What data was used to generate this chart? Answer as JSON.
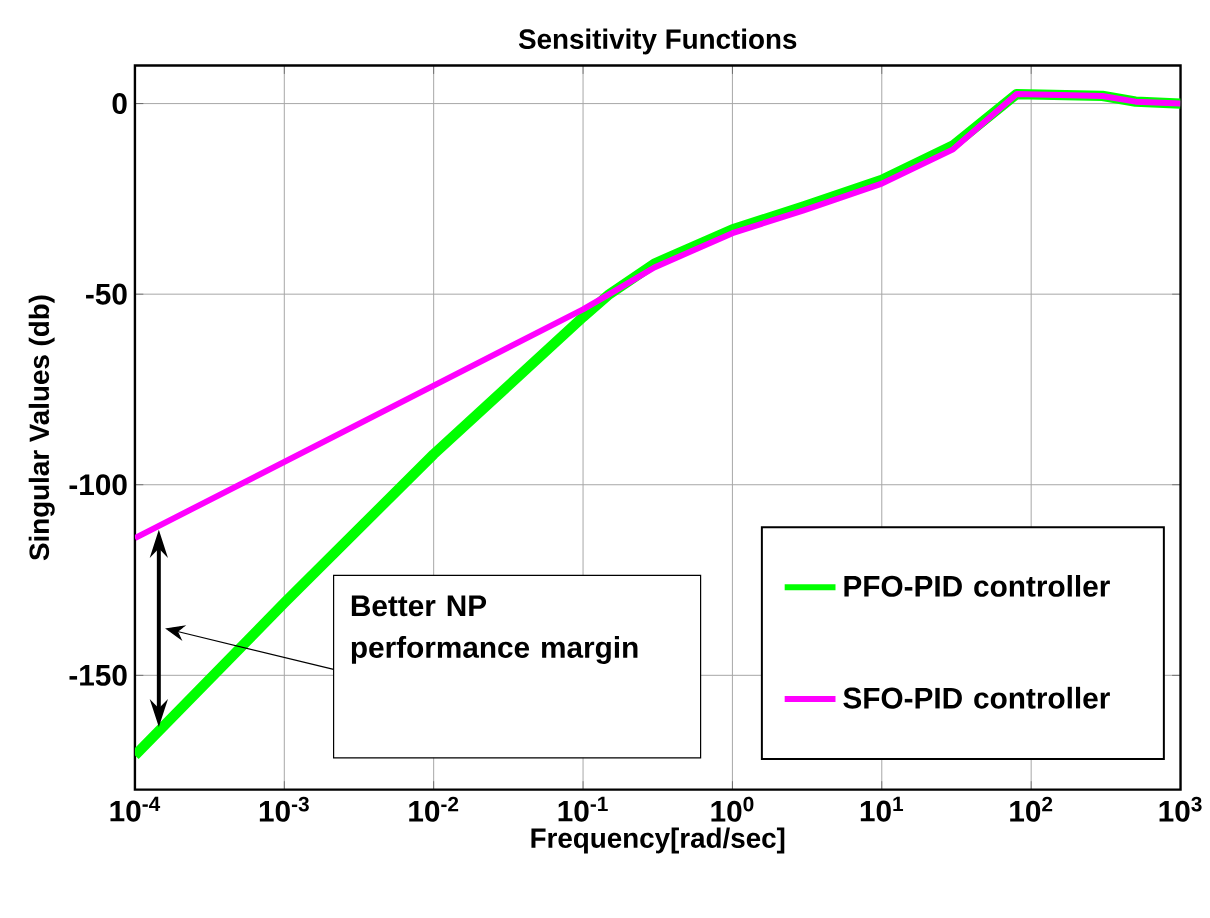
{
  "chart_data": {
    "type": "line",
    "title": "Sensitivity Functions",
    "xlabel": "Frequency[rad/sec]",
    "ylabel": "Singular Values (db)",
    "log": "x",
    "grid": true,
    "legend": "bottom right",
    "marker": "none",
    "line_style": "solid",
    "xlim": [
      0.0001,
      1000
    ],
    "ylim": [
      -180,
      10
    ],
    "xticks": [
      {
        "value": 0.0001,
        "label": "10$^{-4}$"
      },
      {
        "value": 0.001,
        "label": "10$^{-3}$"
      },
      {
        "value": 0.01,
        "label": "10$^{-2}$"
      },
      {
        "value": 0.1,
        "label": "10$^{-1}$"
      },
      {
        "value": 1,
        "label": "10$^{0}$"
      },
      {
        "value": 10,
        "label": "10$^{1}$"
      },
      {
        "value": 100,
        "label": "10$^{2}$"
      },
      {
        "value": 1000,
        "label": "10$^{3}$"
      }
    ],
    "yticks": [
      -150,
      -100,
      -50,
      0
    ],
    "x": [
      0.0001,
      0.001,
      0.01,
      0.1,
      0.15,
      0.3,
      1,
      3,
      10,
      30,
      80,
      300,
      500,
      1000
    ],
    "series": [
      {
        "name": "PFO-PID controller",
        "color": "#00ff00",
        "values": [
          -171,
          -131,
          -92,
          -56,
          -50,
          -42,
          -33,
          -27,
          -20,
          -11,
          2.5,
          2,
          0.5,
          0
        ]
      },
      {
        "name": "SFO-PID controller",
        "color": "#ff00ff",
        "values": [
          -114,
          -94,
          -74,
          -54,
          -50,
          -43,
          -34,
          -28,
          -21,
          -12,
          2.5,
          2,
          0.5,
          0
        ]
      }
    ],
    "annotations": [
      "Better NP performance margin"
    ]
  }
}
